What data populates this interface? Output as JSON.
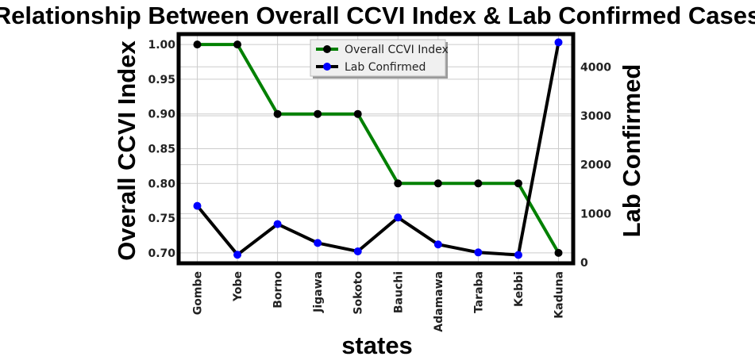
{
  "chart_data": {
    "type": "line",
    "title": "Relationship Between Overall CCVI Index & Lab Confirmed Cases",
    "xlabel": "states",
    "ylabel_left": "Overall CCVI Index",
    "ylabel_right": "Lab Confirmed",
    "categories": [
      "Gombe",
      "Yobe",
      "Borno",
      "Jigawa",
      "Sokoto",
      "Bauchi",
      "Adamawa",
      "Taraba",
      "Kebbi",
      "Kaduna"
    ],
    "series": [
      {
        "name": "Overall CCVI Index",
        "axis": "left",
        "values": [
          1.0,
          1.0,
          0.9,
          0.9,
          0.9,
          0.8,
          0.8,
          0.8,
          0.8,
          0.7
        ],
        "line_color": "#008000",
        "marker_color": "#000000"
      },
      {
        "name": "Lab Confirmed",
        "axis": "right",
        "values": [
          1158,
          160,
          786,
          400,
          229,
          920,
          370,
          207,
          155,
          4500
        ],
        "line_color": "#000000",
        "marker_color": "#0000ff"
      }
    ],
    "ylim_left": [
      0.685,
      1.015
    ],
    "yticks_left": [
      "0.70",
      "0.75",
      "0.80",
      "0.85",
      "0.90",
      "0.95",
      "1.00"
    ],
    "ylim_right": [
      -15,
      4669
    ],
    "yticks_right": [
      "0",
      "1000",
      "2000",
      "3000",
      "4000"
    ],
    "grid": true,
    "legend_position": "top-center"
  }
}
